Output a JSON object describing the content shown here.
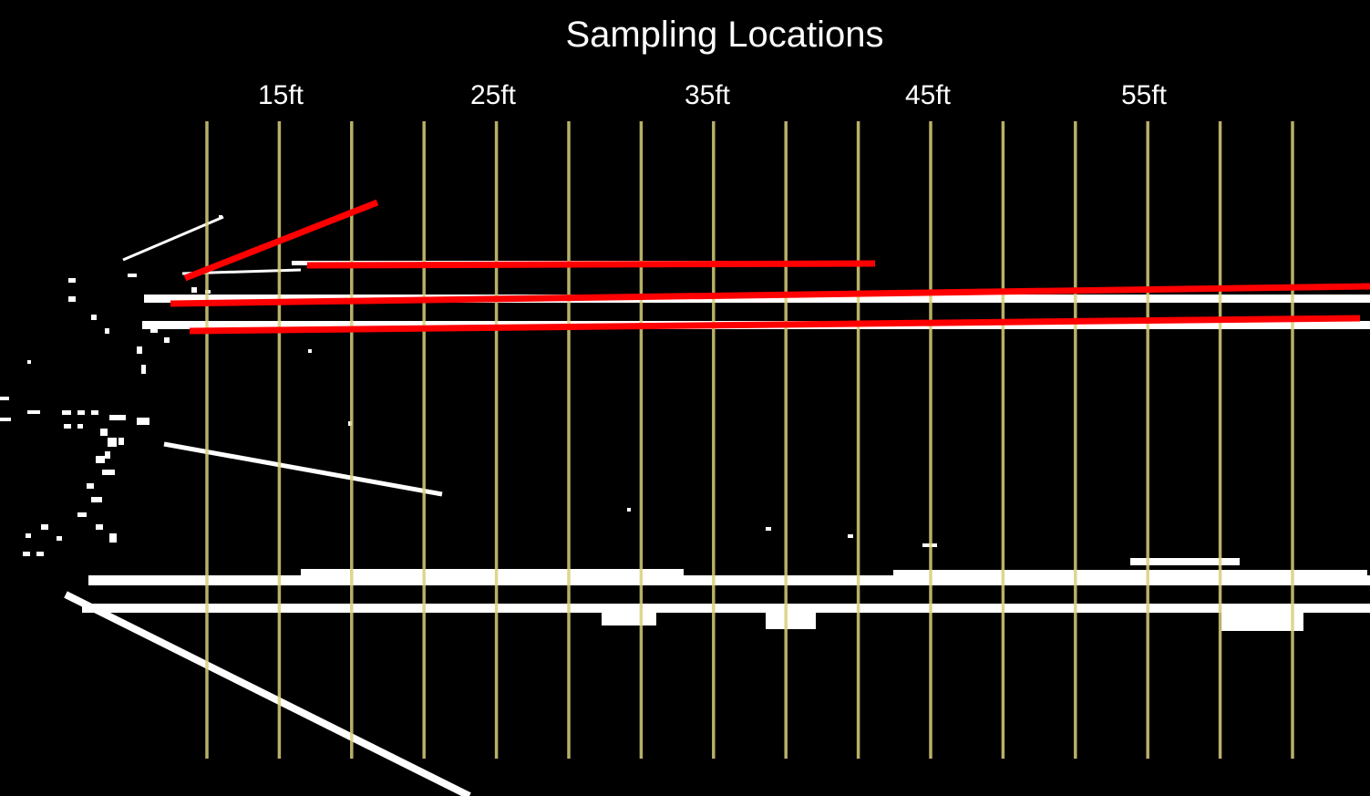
{
  "title": "Sampling Locations",
  "distance_labels": [
    "15ft",
    "25ft",
    "35ft",
    "45ft",
    "55ft"
  ],
  "sampling_line_count": 16,
  "colors": {
    "background": "#000000",
    "sampling_line": "#d9cf7a",
    "fitted_line": "#ff0000",
    "point_cloud": "#ffffff"
  }
}
